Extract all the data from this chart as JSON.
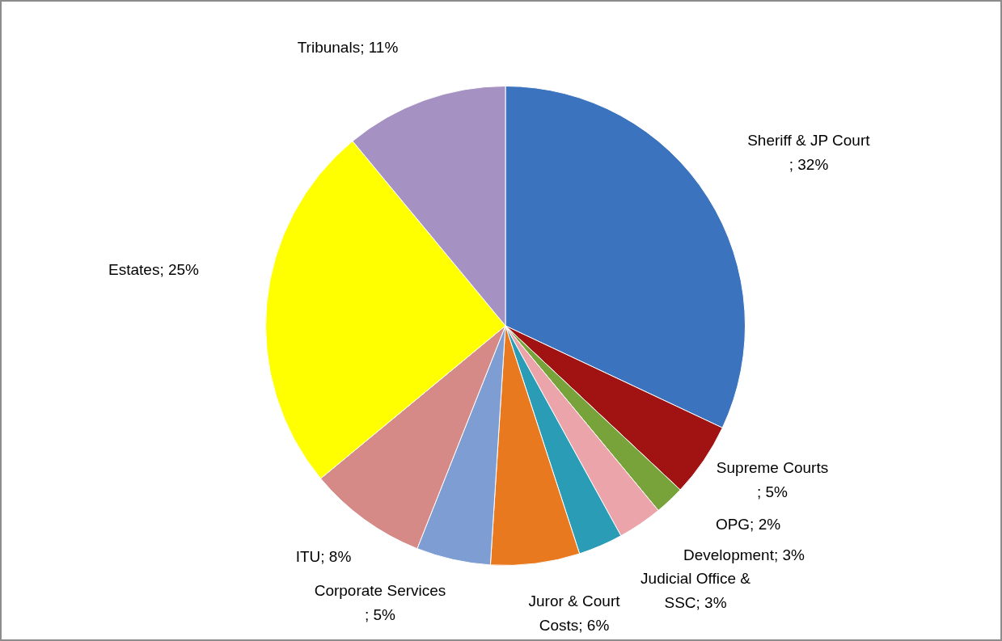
{
  "chart_data": {
    "type": "pie",
    "categories": [
      "Sheriff & JP Court",
      "Supreme Courts",
      "OPG",
      "Development",
      "Judicial Office & SSC",
      "Juror & Court Costs",
      "Corporate Services",
      "ITU",
      "Estates",
      "Tribunals"
    ],
    "values": [
      32,
      5,
      2,
      3,
      3,
      6,
      5,
      8,
      25,
      11
    ],
    "colors": [
      "#3b73bf",
      "#a11212",
      "#78a23a",
      "#eaa4aa",
      "#2b9cb6",
      "#e8791f",
      "#7d9dd3",
      "#d58a88",
      "#ffff00",
      "#a692c2"
    ],
    "value_labels": [
      "; 32%",
      "; 5%",
      "; 2%",
      "; 3%",
      "; 3%",
      "; 6%",
      "; 5%",
      "; 8%",
      "; 25%",
      "; 11%"
    ],
    "legend": false
  }
}
